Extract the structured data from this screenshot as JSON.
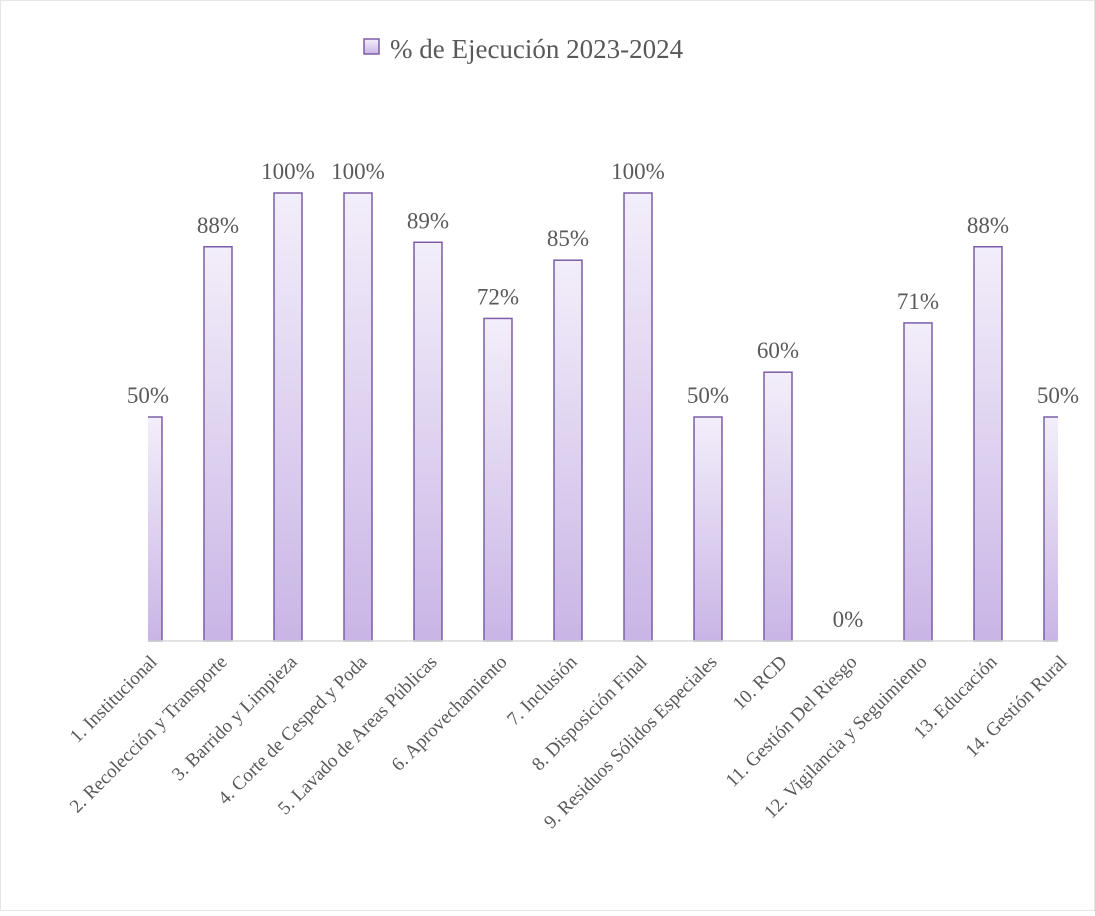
{
  "chart_data": {
    "type": "bar",
    "categories": [
      "1. Institucional",
      "2. Recolección  y Transporte",
      "3. Barrido y Limpieza",
      "4. Corte de Cesped y Poda",
      "5. Lavado de Areas Públicas",
      "6. Aprovechamiento",
      "7. Inclusión",
      "8. Disposición Final",
      "9. Residuos Sólidos Especiales",
      "10. RCD",
      "11. Gestión Del Riesgo",
      "12. Vigilancia y Seguimiento",
      "13. Educación",
      "14. Gestión Rural"
    ],
    "series": [
      {
        "name": "%  de Ejecución 2023-2024",
        "color": "#c9b5e6",
        "values": [
          50,
          88,
          100,
          100,
          89,
          72,
          85,
          100,
          50,
          60,
          0,
          71,
          88,
          50
        ],
        "value_labels": [
          "50%",
          "88%",
          "100%",
          "100%",
          "89%",
          "72%",
          "85%",
          "100%",
          "50%",
          "60%",
          "0%",
          "71%",
          "88%",
          "50%"
        ]
      }
    ],
    "ylim": [
      0,
      100
    ],
    "legend": "top"
  }
}
